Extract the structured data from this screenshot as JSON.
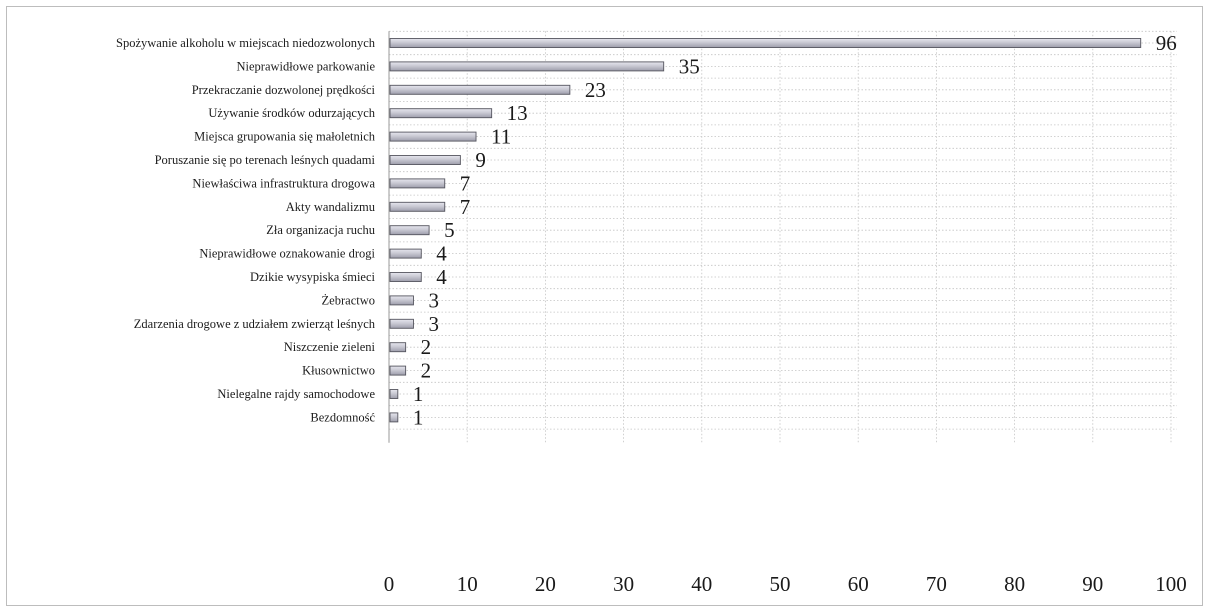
{
  "chart_data": {
    "type": "bar",
    "orientation": "horizontal",
    "title": "",
    "xlabel": "",
    "ylabel": "",
    "xlim": [
      0,
      100
    ],
    "xticks": [
      0,
      10,
      20,
      30,
      40,
      50,
      60,
      70,
      80,
      90,
      100
    ],
    "grid": true,
    "legend": "none",
    "categories": [
      "Spożywanie alkoholu w miejscach niedozwolonych",
      "Nieprawidłowe parkowanie",
      "Przekraczanie dozwolonej prędkości",
      "Używanie środków odurzających",
      "Miejsca grupowania się małoletnich",
      "Poruszanie się po terenach leśnych quadami",
      "Niewłaściwa infrastruktura drogowa",
      "Akty wandalizmu",
      "Zła organizacja ruchu",
      "Nieprawidłowe oznakowanie drogi",
      "Dzikie wysypiska śmieci",
      "Żebractwo",
      "Zdarzenia drogowe z udziałem zwierząt leśnych",
      "Niszczenie zieleni",
      "Kłusownictwo",
      "Nielegalne rajdy samochodowe",
      "Bezdomność"
    ],
    "values": [
      96,
      35,
      23,
      13,
      11,
      9,
      7,
      7,
      5,
      4,
      4,
      3,
      3,
      2,
      2,
      1,
      1
    ],
    "colors": {
      "bar": "#c9c9d3",
      "bar_edge": "#55555f",
      "grid": "#c4c4c4",
      "text": "#1a1a1a"
    }
  }
}
